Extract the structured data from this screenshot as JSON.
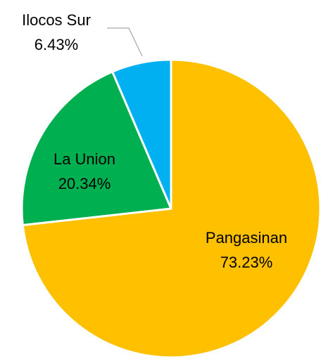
{
  "chart_data": {
    "type": "pie",
    "categories": [
      "Pangasinan",
      "La Union",
      "Ilocos Sur"
    ],
    "values": [
      73.23,
      20.34,
      6.43
    ],
    "value_labels": [
      "73.23%",
      "20.34%",
      "6.43%"
    ],
    "colors": [
      "#FFC000",
      "#00B050",
      "#00B0F0"
    ]
  }
}
